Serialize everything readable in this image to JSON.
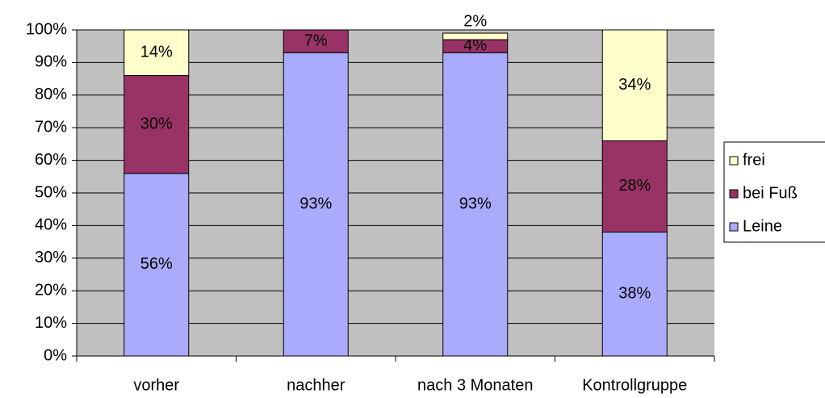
{
  "chart_data": {
    "type": "stacked_bar",
    "categories": [
      "vorher",
      "nachher",
      "nach 3 Monaten",
      "Kontrollgruppe"
    ],
    "series": [
      {
        "name": "Leine",
        "color": "#aaaaff",
        "values": [
          56,
          93,
          93,
          38
        ],
        "value_labels": [
          "56%",
          "93%",
          "93%",
          "38%"
        ]
      },
      {
        "name": "bei Fuß",
        "color": "#993366",
        "values": [
          30,
          7,
          4,
          28
        ],
        "value_labels": [
          "30%",
          "7%",
          "4%",
          "28%"
        ]
      },
      {
        "name": "frei",
        "color": "#ffffcc",
        "values": [
          14,
          null,
          2,
          34
        ],
        "value_labels": [
          "14%",
          null,
          "2%",
          "34%"
        ]
      }
    ],
    "ylim": [
      0,
      100
    ],
    "yticks": [
      {
        "value": 0,
        "label": "0%"
      },
      {
        "value": 10,
        "label": "10%"
      },
      {
        "value": 20,
        "label": "20%"
      },
      {
        "value": 30,
        "label": "30%"
      },
      {
        "value": 40,
        "label": "40%"
      },
      {
        "value": 50,
        "label": "50%"
      },
      {
        "value": 60,
        "label": "60%"
      },
      {
        "value": 70,
        "label": "70%"
      },
      {
        "value": 80,
        "label": "80%"
      },
      {
        "value": 90,
        "label": "90%"
      },
      {
        "value": 100,
        "label": "100%"
      }
    ],
    "grid": true,
    "legend": "right"
  }
}
